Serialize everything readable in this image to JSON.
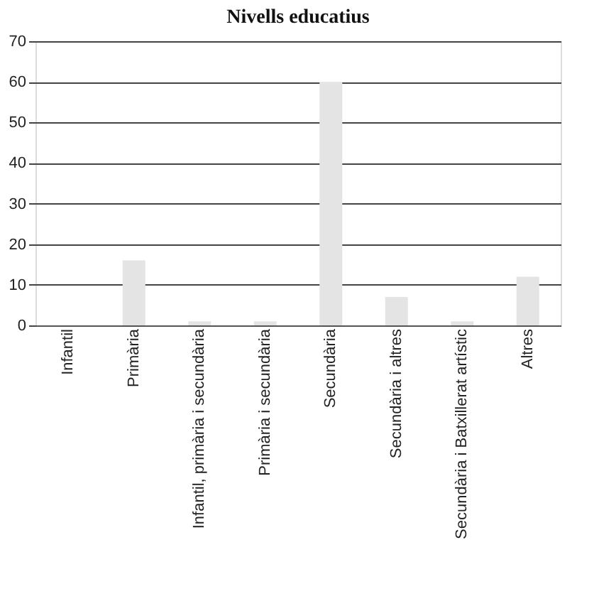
{
  "chart_data": {
    "type": "bar",
    "title": "Nivells educatius",
    "categories": [
      "Infantil",
      "Primària",
      "Infantil, primària i secundària",
      "Primària i secundària",
      "Secundària",
      "Secundària i altres",
      "Secundària i Batxillerat artístic",
      "Altres"
    ],
    "values": [
      0,
      16,
      1,
      1,
      60,
      7,
      1,
      12
    ],
    "color": "#e4e4e4",
    "ylim": [
      0,
      70
    ],
    "yticks": [
      0,
      10,
      20,
      30,
      40,
      50,
      60,
      70
    ],
    "grid": "y"
  }
}
